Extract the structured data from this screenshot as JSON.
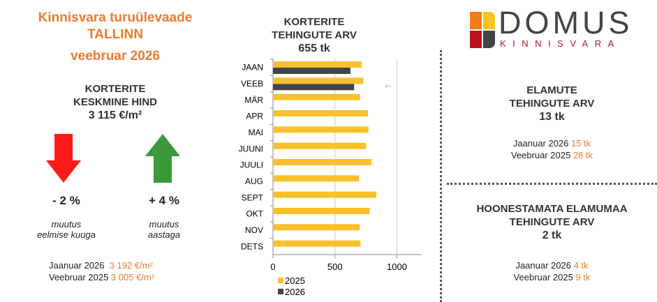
{
  "header": {
    "line1": "Kinnisvara turuülevaade",
    "line2": "TALLINN",
    "line3": "veebruar 2026"
  },
  "price": {
    "title1": "KORTERITE",
    "title2": "KESKMINE HIND",
    "value": "3 115 €/m²",
    "month_change": "- 2 %",
    "month_label1": "muutus",
    "month_label2": "eelmise kuuga",
    "year_change": "+ 4 %",
    "year_label1": "muutus",
    "year_label2": "aastaga",
    "cmp1_label": "Jaanuar 2026",
    "cmp1_value": "3 192 €/m²",
    "cmp2_label": "Veebruar 2025",
    "cmp2_value": "3 005 €/m²",
    "down_arrow_color": "#ff1a1a",
    "up_arrow_color": "#3a9a3a"
  },
  "chart_title": {
    "line1": "KORTERITE",
    "line2": "TEHINGUTE ARV",
    "value": "655 tk"
  },
  "chart_data": {
    "type": "bar",
    "orientation": "horizontal",
    "categories": [
      "JAAN",
      "VEEB",
      "MÄR",
      "APR",
      "MAI",
      "JUUNI",
      "JUULI",
      "AUG",
      "SEPT",
      "OKT",
      "NOV",
      "DETS"
    ],
    "series": [
      {
        "name": "2025",
        "color": "#fbc02d",
        "values": [
          715,
          729,
          702,
          766,
          770,
          751,
          795,
          695,
          834,
          780,
          700,
          706
        ]
      },
      {
        "name": "2026",
        "color": "#444444",
        "values": [
          625,
          655,
          null,
          null,
          null,
          null,
          null,
          null,
          null,
          null,
          null,
          null
        ]
      }
    ],
    "xlim": [
      0,
      1200
    ],
    "xticks": [
      0,
      500,
      1000
    ],
    "grid": true,
    "legend": "bottom-left",
    "annotation": "←"
  },
  "logo": {
    "name": "DOMUS",
    "sub": "KINNISVARA"
  },
  "houses": {
    "title1": "ELAMUTE",
    "title2": "TEHINGUTE ARV",
    "value": "13 tk",
    "cmp1_label": "Jaanuar 2026",
    "cmp1_value": "15 tk",
    "cmp2_label": "Veebruar 2025",
    "cmp2_value": "28 tk"
  },
  "land": {
    "title1": "HOONESTAMATA ELAMUMAA",
    "title2": "TEHINGUTE ARV",
    "value": "2 tk",
    "cmp1_label": "Jaanuar 2026",
    "cmp1_value": "4 tk",
    "cmp2_label": "Veebruar 2025",
    "cmp2_value": "9 tk"
  }
}
